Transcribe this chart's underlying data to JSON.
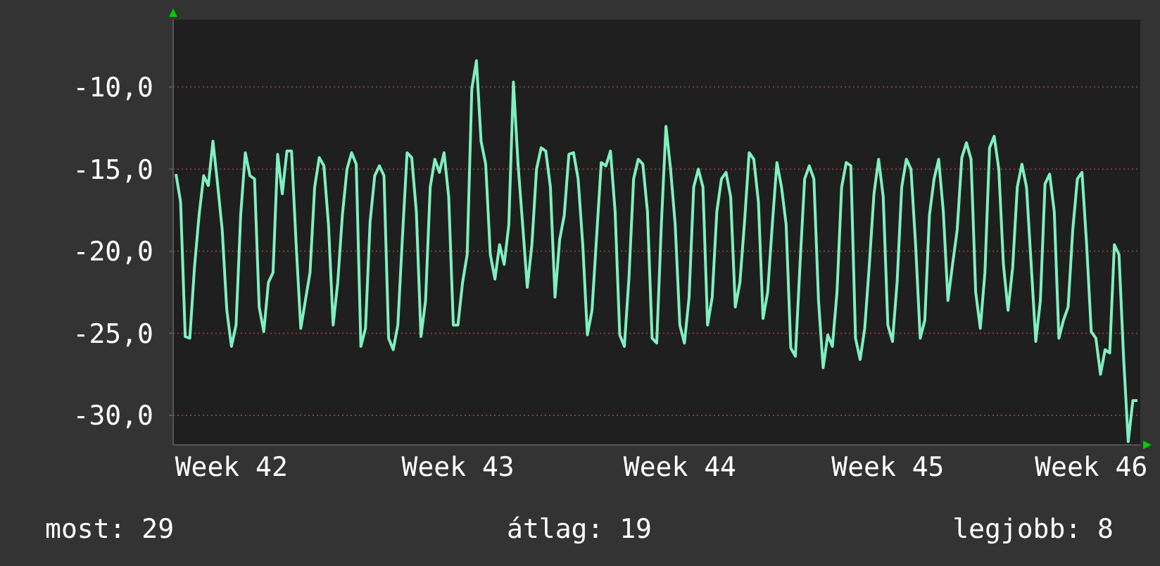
{
  "chart_data": {
    "type": "line",
    "categories": [
      null,
      null,
      null,
      null,
      null,
      null,
      null,
      null,
      null,
      null,
      null,
      null,
      "Week 42",
      null,
      null,
      null,
      null,
      null,
      null,
      null,
      null,
      null,
      null,
      null,
      null,
      null,
      null,
      null,
      null,
      null,
      null,
      null,
      null,
      null,
      null,
      null,
      null,
      null,
      null,
      null,
      null,
      null,
      null,
      null,
      null,
      null,
      null,
      null,
      null,
      null,
      null,
      null,
      null,
      null,
      null,
      null,
      null,
      null,
      null,
      null,
      null,
      "Week 43",
      null,
      null,
      null,
      null,
      null,
      null,
      null,
      null,
      null,
      null,
      null,
      null,
      null,
      null,
      null,
      null,
      null,
      null,
      null,
      null,
      null,
      null,
      null,
      null,
      null,
      null,
      null,
      null,
      null,
      null,
      null,
      null,
      null,
      null,
      null,
      null,
      null,
      null,
      null,
      null,
      null,
      null,
      null,
      null,
      null,
      null,
      null,
      "Week 44",
      null,
      null,
      null,
      null,
      null,
      null,
      null,
      null,
      null,
      null,
      null,
      null,
      null,
      null,
      null,
      null,
      null,
      null,
      null,
      null,
      null,
      null,
      null,
      null,
      null,
      null,
      null,
      null,
      null,
      null,
      null,
      null,
      null,
      null,
      null,
      null,
      null,
      null,
      null,
      null,
      null,
      null,
      null,
      null,
      "Week 45",
      null,
      null,
      null,
      null,
      null,
      null,
      null,
      null,
      null,
      null,
      null,
      null,
      null,
      null,
      null,
      null,
      null,
      null,
      null,
      null,
      null,
      null,
      null,
      null,
      null,
      null,
      null,
      null,
      null,
      null,
      null,
      null,
      null,
      null,
      null,
      null,
      null,
      null,
      null,
      null,
      null,
      null,
      null,
      "Week 46",
      null,
      null,
      null,
      null,
      null,
      null,
      null,
      null,
      null,
      null
    ],
    "ylim": [
      -31.8,
      -5.9
    ],
    "yticks": [
      {
        "value": -10,
        "label": "-10,0"
      },
      {
        "value": -15,
        "label": "-15,0"
      },
      {
        "value": -20,
        "label": "-20,0"
      },
      {
        "value": -25,
        "label": "-25,0"
      },
      {
        "value": -30,
        "label": "-30,0"
      }
    ],
    "grid": "y",
    "annotations": [
      "most: 29",
      "átlag: 19",
      "legjobb: 8"
    ],
    "series": [
      {
        "color": "#7ff0c0",
        "values": [
          -15.3,
          -17.0,
          -25.2,
          -25.3,
          -21.0,
          -17.8,
          -15.4,
          -16.0,
          -13.3,
          -15.9,
          -18.7,
          -23.6,
          -25.8,
          -24.5,
          -17.8,
          -14.0,
          -15.4,
          -15.6,
          -23.4,
          -24.9,
          -21.9,
          -21.3,
          -14.1,
          -16.5,
          -13.9,
          -13.9,
          -19.6,
          -24.7,
          -23.0,
          -21.3,
          -16.1,
          -14.3,
          -14.8,
          -18.4,
          -24.5,
          -21.9,
          -17.8,
          -15.0,
          -14.0,
          -14.7,
          -25.8,
          -24.7,
          -18.2,
          -15.4,
          -14.8,
          -15.4,
          -25.3,
          -26.0,
          -24.5,
          -19.1,
          -14.0,
          -14.3,
          -17.6,
          -25.2,
          -23.0,
          -16.1,
          -14.4,
          -15.2,
          -14.0,
          -16.7,
          -24.5,
          -24.5,
          -21.9,
          -20.2,
          -10.1,
          -8.4,
          -13.3,
          -14.7,
          -20.2,
          -21.7,
          -19.6,
          -20.8,
          -18.4,
          -9.7,
          -14.7,
          -18.4,
          -22.2,
          -19.6,
          -15.0,
          -13.7,
          -13.9,
          -16.1,
          -22.8,
          -19.3,
          -17.8,
          -14.1,
          -14.0,
          -15.6,
          -19.6,
          -25.1,
          -23.6,
          -19.1,
          -14.6,
          -14.8,
          -13.9,
          -17.6,
          -25.1,
          -25.8,
          -21.6,
          -15.6,
          -14.4,
          -14.7,
          -17.6,
          -25.3,
          -25.6,
          -18.4,
          -12.4,
          -15.0,
          -18.4,
          -24.5,
          -25.6,
          -22.8,
          -16.1,
          -15.0,
          -16.1,
          -24.5,
          -22.8,
          -17.6,
          -15.6,
          -15.2,
          -16.7,
          -23.4,
          -21.9,
          -18.2,
          -14.0,
          -14.4,
          -17.0,
          -24.1,
          -22.5,
          -18.4,
          -14.6,
          -16.1,
          -18.4,
          -25.9,
          -26.4,
          -20.8,
          -15.6,
          -14.8,
          -15.6,
          -23.0,
          -27.1,
          -25.1,
          -25.8,
          -22.5,
          -16.1,
          -14.6,
          -14.8,
          -25.3,
          -26.6,
          -24.7,
          -20.8,
          -16.5,
          -14.4,
          -16.7,
          -24.5,
          -25.5,
          -21.9,
          -16.1,
          -14.4,
          -15.0,
          -19.6,
          -25.3,
          -24.2,
          -17.8,
          -15.6,
          -14.4,
          -17.6,
          -23.0,
          -20.8,
          -18.7,
          -14.3,
          -13.4,
          -14.4,
          -22.5,
          -24.7,
          -21.3,
          -13.7,
          -13.0,
          -15.0,
          -20.8,
          -23.6,
          -21.0,
          -16.1,
          -14.7,
          -16.1,
          -20.8,
          -25.5,
          -23.0,
          -15.9,
          -15.3,
          -17.6,
          -25.3,
          -24.2,
          -23.4,
          -18.7,
          -15.6,
          -15.2,
          -19.6,
          -24.9,
          -25.3,
          -27.5,
          -26.0,
          -26.2,
          -19.6,
          -20.2,
          -26.5,
          -31.6,
          -29.1,
          -29.1
        ]
      }
    ]
  }
}
